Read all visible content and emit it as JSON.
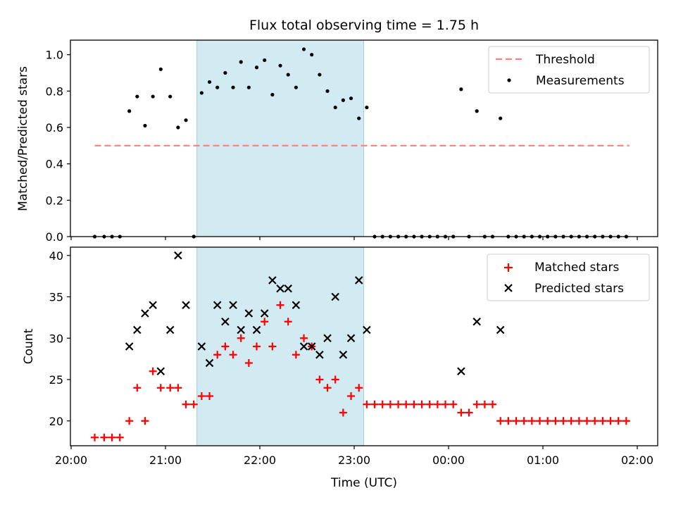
{
  "chart_data": [
    {
      "type": "scatter",
      "title": "Flux total observing time = 1.75 h",
      "ylabel": "Matched/Predicted stars",
      "xlabel": "",
      "ylim": [
        0,
        1.08
      ],
      "yticks": [
        "0.0",
        "0.2",
        "0.4",
        "0.6",
        "0.8",
        "1.0"
      ],
      "legend_placement": "top-right",
      "shaded_interval": {
        "start": "21:20",
        "end": "23:06",
        "color": "#add8e6"
      },
      "threshold": {
        "name": "Threshold",
        "value": 0.5,
        "x_start": "20:15",
        "x_end": "01:55",
        "color": "#ff7f7f"
      },
      "series": [
        {
          "name": "Measurements",
          "color": "#000000",
          "points": [
            [
              "20:15",
              0
            ],
            [
              "20:21",
              0
            ],
            [
              "20:26",
              0
            ],
            [
              "20:31",
              0
            ],
            [
              "20:37",
              0.69
            ],
            [
              "20:42",
              0.77
            ],
            [
              "20:47",
              0.61
            ],
            [
              "20:52",
              0.77
            ],
            [
              "20:57",
              0.92
            ],
            [
              "21:03",
              0.77
            ],
            [
              "21:08",
              0.6
            ],
            [
              "21:13",
              0.64
            ],
            [
              "21:18",
              0
            ],
            [
              "21:23",
              0.79
            ],
            [
              "21:28",
              0.85
            ],
            [
              "21:33",
              0.82
            ],
            [
              "21:38",
              0.9
            ],
            [
              "21:43",
              0.82
            ],
            [
              "21:48",
              0.96
            ],
            [
              "21:53",
              0.82
            ],
            [
              "21:58",
              0.93
            ],
            [
              "22:03",
              0.97
            ],
            [
              "22:08",
              0.78
            ],
            [
              "22:13",
              0.94
            ],
            [
              "22:18",
              0.89
            ],
            [
              "22:23",
              0.82
            ],
            [
              "22:28",
              1.03
            ],
            [
              "22:33",
              1.0
            ],
            [
              "22:38",
              0.89
            ],
            [
              "22:43",
              0.8
            ],
            [
              "22:48",
              0.71
            ],
            [
              "22:53",
              0.75
            ],
            [
              "22:58",
              0.76
            ],
            [
              "23:03",
              0.65
            ],
            [
              "23:08",
              0.71
            ],
            [
              "23:13",
              0
            ],
            [
              "23:18",
              0
            ],
            [
              "23:23",
              0
            ],
            [
              "23:28",
              0
            ],
            [
              "23:33",
              0
            ],
            [
              "23:38",
              0
            ],
            [
              "23:43",
              0
            ],
            [
              "23:48",
              0
            ],
            [
              "23:53",
              0
            ],
            [
              "23:58",
              0
            ],
            [
              "00:03",
              0
            ],
            [
              "00:08",
              0.81
            ],
            [
              "00:13",
              0
            ],
            [
              "00:18",
              0.69
            ],
            [
              "00:23",
              0
            ],
            [
              "00:28",
              0
            ],
            [
              "00:33",
              0.65
            ],
            [
              "00:38",
              0
            ],
            [
              "00:43",
              0
            ],
            [
              "00:48",
              0
            ],
            [
              "00:53",
              0
            ],
            [
              "00:58",
              0
            ],
            [
              "01:03",
              0
            ],
            [
              "01:08",
              0
            ],
            [
              "01:13",
              0
            ],
            [
              "01:18",
              0
            ],
            [
              "01:23",
              0
            ],
            [
              "01:28",
              0
            ],
            [
              "01:33",
              0
            ],
            [
              "01:38",
              0
            ],
            [
              "01:43",
              0
            ],
            [
              "01:48",
              0
            ],
            [
              "01:53",
              0
            ]
          ]
        }
      ]
    },
    {
      "type": "scatter",
      "title": "",
      "ylabel": "Count",
      "xlabel": "Time (UTC)",
      "ylim": [
        17,
        41
      ],
      "yticks": [
        "20",
        "25",
        "30",
        "35",
        "40"
      ],
      "xticks": [
        "20:00",
        "21:00",
        "22:00",
        "23:00",
        "00:00",
        "01:00",
        "02:00"
      ],
      "xlim": [
        "20:00",
        "02:00"
      ],
      "legend_placement": "top-right",
      "shaded_interval": {
        "start": "21:20",
        "end": "23:06",
        "color": "#add8e6"
      },
      "series": [
        {
          "name": "Matched stars",
          "marker": "plus",
          "color": "#ff0000",
          "points": [
            [
              "20:15",
              18
            ],
            [
              "20:21",
              18
            ],
            [
              "20:26",
              18
            ],
            [
              "20:31",
              18
            ],
            [
              "20:37",
              20
            ],
            [
              "20:42",
              24
            ],
            [
              "20:47",
              20
            ],
            [
              "20:52",
              26
            ],
            [
              "20:57",
              24
            ],
            [
              "21:03",
              24
            ],
            [
              "21:08",
              24
            ],
            [
              "21:13",
              22
            ],
            [
              "21:18",
              22
            ],
            [
              "21:23",
              23
            ],
            [
              "21:28",
              23
            ],
            [
              "21:33",
              28
            ],
            [
              "21:38",
              29
            ],
            [
              "21:43",
              28
            ],
            [
              "21:48",
              30
            ],
            [
              "21:53",
              27
            ],
            [
              "21:58",
              29
            ],
            [
              "22:03",
              32
            ],
            [
              "22:08",
              29
            ],
            [
              "22:13",
              34
            ],
            [
              "22:18",
              32
            ],
            [
              "22:23",
              28
            ],
            [
              "22:28",
              30
            ],
            [
              "22:33",
              29
            ],
            [
              "22:38",
              25
            ],
            [
              "22:43",
              24
            ],
            [
              "22:48",
              25
            ],
            [
              "22:53",
              21
            ],
            [
              "22:58",
              23
            ],
            [
              "23:03",
              24
            ],
            [
              "23:08",
              22
            ],
            [
              "23:13",
              22
            ],
            [
              "23:18",
              22
            ],
            [
              "23:23",
              22
            ],
            [
              "23:28",
              22
            ],
            [
              "23:33",
              22
            ],
            [
              "23:38",
              22
            ],
            [
              "23:43",
              22
            ],
            [
              "23:48",
              22
            ],
            [
              "23:53",
              22
            ],
            [
              "23:58",
              22
            ],
            [
              "00:03",
              22
            ],
            [
              "00:08",
              21
            ],
            [
              "00:13",
              21
            ],
            [
              "00:18",
              22
            ],
            [
              "00:23",
              22
            ],
            [
              "00:28",
              22
            ],
            [
              "00:33",
              20
            ],
            [
              "00:38",
              20
            ],
            [
              "00:43",
              20
            ],
            [
              "00:48",
              20
            ],
            [
              "00:53",
              20
            ],
            [
              "00:58",
              20
            ],
            [
              "01:03",
              20
            ],
            [
              "01:08",
              20
            ],
            [
              "01:13",
              20
            ],
            [
              "01:18",
              20
            ],
            [
              "01:23",
              20
            ],
            [
              "01:28",
              20
            ],
            [
              "01:33",
              20
            ],
            [
              "01:38",
              20
            ],
            [
              "01:43",
              20
            ],
            [
              "01:48",
              20
            ],
            [
              "01:53",
              20
            ]
          ]
        },
        {
          "name": "Predicted stars",
          "marker": "x",
          "color": "#000000",
          "points": [
            [
              "20:37",
              29
            ],
            [
              "20:42",
              31
            ],
            [
              "20:47",
              33
            ],
            [
              "20:52",
              34
            ],
            [
              "20:57",
              26
            ],
            [
              "21:03",
              31
            ],
            [
              "21:08",
              40
            ],
            [
              "21:13",
              34
            ],
            [
              "21:23",
              29
            ],
            [
              "21:28",
              27
            ],
            [
              "21:33",
              34
            ],
            [
              "21:38",
              32
            ],
            [
              "21:43",
              34
            ],
            [
              "21:48",
              31
            ],
            [
              "21:53",
              33
            ],
            [
              "21:58",
              31
            ],
            [
              "22:03",
              33
            ],
            [
              "22:08",
              37
            ],
            [
              "22:13",
              36
            ],
            [
              "22:18",
              36
            ],
            [
              "22:23",
              34
            ],
            [
              "22:28",
              29
            ],
            [
              "22:33",
              29
            ],
            [
              "22:38",
              28
            ],
            [
              "22:43",
              30
            ],
            [
              "22:48",
              35
            ],
            [
              "22:53",
              28
            ],
            [
              "22:58",
              30
            ],
            [
              "23:03",
              37
            ],
            [
              "23:08",
              31
            ],
            [
              "00:08",
              26
            ],
            [
              "00:18",
              32
            ],
            [
              "00:33",
              31
            ]
          ]
        }
      ]
    }
  ]
}
